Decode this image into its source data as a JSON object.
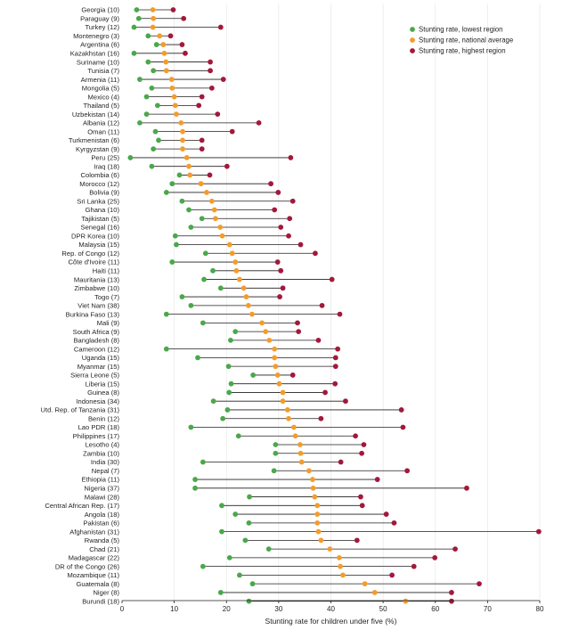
{
  "chart_data": {
    "type": "dumbbell",
    "title": "",
    "xlabel": "Stunting rate for children under five (%)",
    "ylabel": "",
    "xlim": [
      0,
      80
    ],
    "xticks": [
      0,
      10,
      20,
      30,
      40,
      50,
      60,
      70,
      80
    ],
    "legend_position": "top-right",
    "colors": {
      "low": "#4aa84a",
      "national": "#f39c2b",
      "high": "#a3183c",
      "line": "#231f20"
    },
    "series": [
      {
        "name": "Stunting rate, lowest region",
        "key": "low"
      },
      {
        "name": "Stunting rate, national average",
        "key": "national"
      },
      {
        "name": "Stunting rate, highest region",
        "key": "high"
      }
    ],
    "categories": [
      "Georgia (10)",
      "Paraguay (9)",
      "Turkey (12)",
      "Montenegro (3)",
      "Argentina (6)",
      "Kazakhstan (16)",
      "Suriname (10)",
      "Tunisia (7)",
      "Armenia (11)",
      "Mongolia (5)",
      "Mexico (4)",
      "Thailand (5)",
      "Uzbekistan (14)",
      "Albania (12)",
      "Oman (11)",
      "Turkmenistan (6)",
      "Kyrgyzstan (9)",
      "Peru (25)",
      "Iraq (18)",
      "Colombia (6)",
      "Morocco (12)",
      "Bolivia (9)",
      "Sri Lanka (25)",
      "Ghana (10)",
      "Tajikistan (5)",
      "Senegal (16)",
      "DPR Korea (10)",
      "Malaysia (15)",
      "Rep. of Congo (12)",
      "Côte d'Ivoire (11)",
      "Haiti (11)",
      "Mauritania (13)",
      "Zimbabwe (10)",
      "Togo (7)",
      "Viet Nam (38)",
      "Burkina Faso (13)",
      "Mali (9)",
      "South Africa (9)",
      "Bangladesh (8)",
      "Cameroon (12)",
      "Uganda (15)",
      "Myanmar (15)",
      "Sierra Leone (5)",
      "Liberia (15)",
      "Guinea (8)",
      "Indonesia (34)",
      "Utd. Rep. of Tanzania (31)",
      "Benin (12)",
      "Lao PDR (18)",
      "Philippines (17)",
      "Lesotho (4)",
      "Zambia (10)",
      "India (30)",
      "Nepal (7)",
      "Ethiopia (11)",
      "Nigeria (37)",
      "Malawi (28)",
      "Central African Rep. (17)",
      "Angola (18)",
      "Pakistan (6)",
      "Afghanistan (31)",
      "Rwanda (5)",
      "Chad (21)",
      "Madagascar (22)",
      "DR of the Congo (26)",
      "Mozambique (11)",
      "Guatemala (8)",
      "Niger (8)",
      "Burundi (18)"
    ],
    "low": [
      2.8,
      3.2,
      2.3,
      5,
      6.6,
      2.3,
      5,
      6,
      3.4,
      5.7,
      4.7,
      6.8,
      4.7,
      3.4,
      6.4,
      7,
      6,
      1.6,
      5.7,
      11,
      9.6,
      8.5,
      11.5,
      12.8,
      15.3,
      13.2,
      10.2,
      10.4,
      16,
      9.6,
      17.4,
      15.7,
      18.9,
      11.5,
      13.2,
      8.5,
      15.5,
      21.7,
      20.8,
      8.5,
      14.5,
      20.4,
      25.1,
      20.9,
      20.5,
      17.5,
      20.2,
      19.3,
      13.2,
      22.3,
      29.4,
      29.4,
      15.5,
      29.1,
      14,
      14,
      24.4,
      19.1,
      21.7,
      24.3,
      19.1,
      23.6,
      28.1,
      20.6,
      15.5,
      22.5,
      25,
      18.9,
      24.3
    ],
    "national": [
      5.9,
      6,
      5.9,
      7.2,
      7.9,
      8.1,
      8.4,
      8.5,
      9.5,
      9.6,
      10,
      10.2,
      10.4,
      11.3,
      11.6,
      11.6,
      11.6,
      12.4,
      12.8,
      13,
      15.1,
      16.2,
      17.2,
      17.7,
      17.9,
      18.8,
      19.2,
      20.6,
      21.1,
      21.7,
      21.9,
      22.5,
      23.3,
      23.8,
      24.2,
      24.9,
      26.8,
      27.5,
      28.2,
      29.2,
      29.2,
      29.4,
      29.8,
      30.1,
      30.8,
      30.8,
      31.7,
      31.9,
      32.9,
      33.2,
      34.1,
      34.2,
      34.4,
      35.8,
      36.5,
      36.6,
      36.9,
      37.4,
      37.4,
      37.4,
      37.6,
      38.1,
      39.8,
      41.6,
      41.8,
      42.3,
      46.5,
      48.4,
      54.3
    ],
    "high": [
      9.8,
      11.8,
      18.9,
      9.3,
      11.5,
      12.1,
      16.9,
      16.9,
      19.4,
      17.2,
      15.3,
      14.7,
      18.3,
      26.2,
      21.1,
      15.3,
      15.3,
      32.3,
      20.1,
      16.8,
      28.5,
      29.9,
      32.7,
      29.2,
      32.1,
      30.4,
      31.9,
      34.2,
      37,
      29.8,
      30.4,
      40.2,
      30.8,
      30.2,
      38.3,
      41.7,
      33.6,
      33.8,
      37.6,
      41.3,
      40.9,
      40.9,
      32.7,
      40.8,
      38.9,
      42.8,
      53.5,
      38.1,
      53.8,
      44.7,
      46.3,
      45.9,
      41.9,
      54.6,
      48.9,
      66,
      45.7,
      46,
      50.6,
      52.1,
      79.8,
      45,
      63.8,
      59.9,
      55.9,
      51.7,
      68.4,
      63.1,
      63.1
    ]
  }
}
